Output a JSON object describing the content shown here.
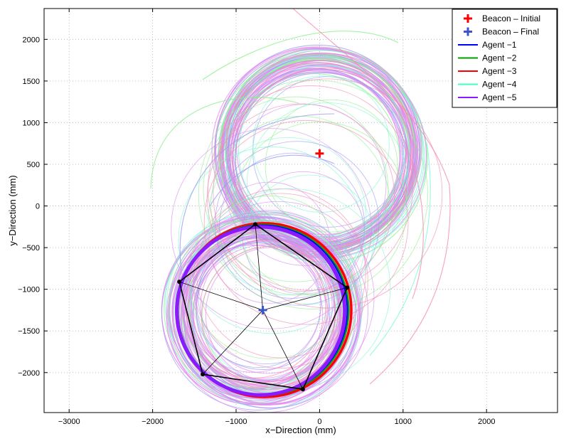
{
  "chart_data": {
    "type": "line",
    "title": "",
    "xlabel": "x−Direction (mm)",
    "ylabel": "y−Direction (mm)",
    "xlim": [
      -3300,
      2850
    ],
    "ylim": [
      -2480,
      2370
    ],
    "x_ticks": [
      -3000,
      -2000,
      -1000,
      0,
      1000,
      2000
    ],
    "y_ticks": [
      -2000,
      -1500,
      -1000,
      -500,
      0,
      500,
      1000,
      1500,
      2000
    ],
    "grid": true,
    "legend_position": "top-right",
    "legend": [
      {
        "label": "Beacon – Initial",
        "color": "#ff0000",
        "marker": "plus"
      },
      {
        "label": "Beacon – Final",
        "color": "#3a55cc",
        "marker": "plus"
      },
      {
        "label": "Agent −1",
        "color": "#0000ff",
        "marker": "line"
      },
      {
        "label": "Agent −2",
        "color": "#00a000",
        "marker": "line"
      },
      {
        "label": "Agent −3",
        "color": "#ff0000",
        "marker": "line"
      },
      {
        "label": "Agent −4",
        "color": "#40ffbf",
        "marker": "line"
      },
      {
        "label": "Agent −5",
        "color": "#8c1aff",
        "marker": "line"
      }
    ],
    "beacon_initial": {
      "x": 0,
      "y": 630
    },
    "beacon_final": {
      "x": -680,
      "y": -1250
    },
    "formation_vertices": [
      {
        "x": -770,
        "y": -220
      },
      {
        "x": 330,
        "y": -980
      },
      {
        "x": -200,
        "y": -2200
      },
      {
        "x": -1400,
        "y": -2020
      },
      {
        "x": -1680,
        "y": -910
      }
    ],
    "final_circle": {
      "cx": -680,
      "cy": -1250,
      "r": 1040
    },
    "initial_circle": {
      "cx": 0,
      "cy": 630,
      "r": 1130
    },
    "series_colors": {
      "agent1": "#0000ff",
      "agent2": "#00a000",
      "agent3": "#ff0000",
      "agent4": "#40ffbf",
      "agent5": "#8c1aff"
    }
  }
}
